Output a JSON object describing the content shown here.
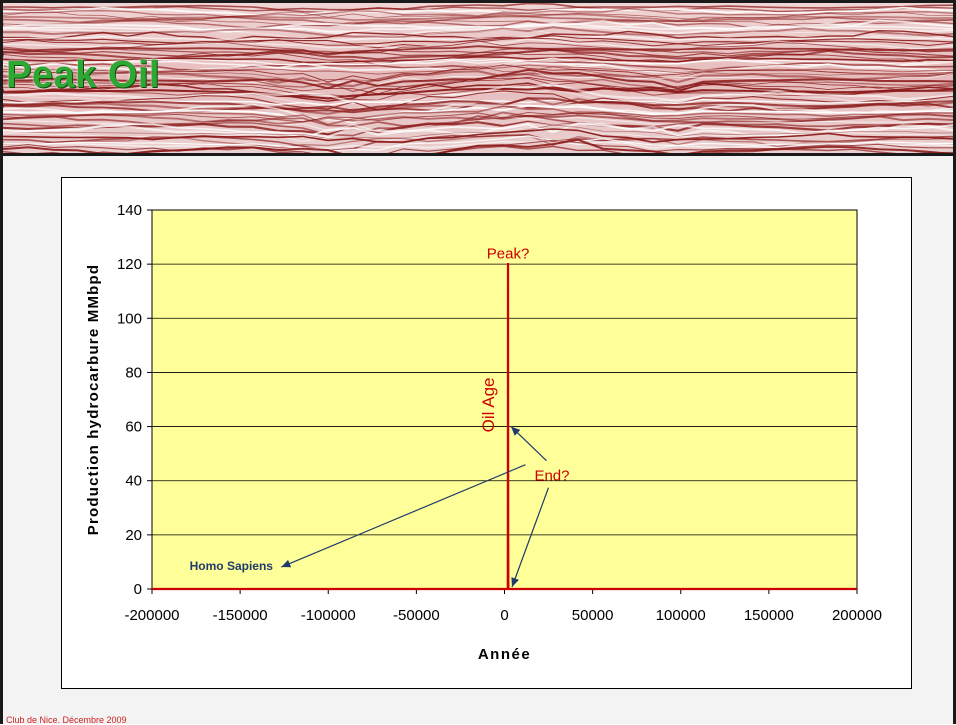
{
  "slide": {
    "title": "Peak Oil",
    "footer": "Club de Nice. Décembre 2009"
  },
  "colors": {
    "plot_background": "#ffff99",
    "series": "#cc0000",
    "annotation_text": "#cc0000",
    "arrow": "#1f3a6b",
    "label_homo": "#1f3a6b",
    "title": "#2ea832"
  },
  "chart_data": {
    "type": "line",
    "xlabel": "Année",
    "ylabel": "Production hydrocarbure MMbpd",
    "xlim": [
      -200000,
      200000
    ],
    "ylim": [
      0,
      140
    ],
    "xticks": [
      -200000,
      -150000,
      -100000,
      -50000,
      0,
      50000,
      100000,
      150000,
      200000
    ],
    "yticks": [
      0,
      20,
      40,
      60,
      80,
      100,
      120,
      140
    ],
    "grid": "horizontal",
    "series": [
      {
        "x": [
          -200000,
          1850,
          1860,
          1900,
          1950,
          2000,
          2010,
          2050,
          2100,
          2200,
          200000
        ],
        "y": [
          0,
          0,
          1,
          20,
          60,
          120,
          120,
          60,
          20,
          0,
          0
        ]
      }
    ],
    "annotations": {
      "peak": {
        "text": "Peak?",
        "x": 2010,
        "y": 122
      },
      "oil_age": {
        "text": "Oil Age",
        "x": 2000,
        "y": 68
      },
      "end": {
        "text": "End?",
        "x": 17000,
        "y": 40
      },
      "homo_sapiens": {
        "text": "Homo Sapiens",
        "x": -155000,
        "y": 7
      }
    }
  }
}
